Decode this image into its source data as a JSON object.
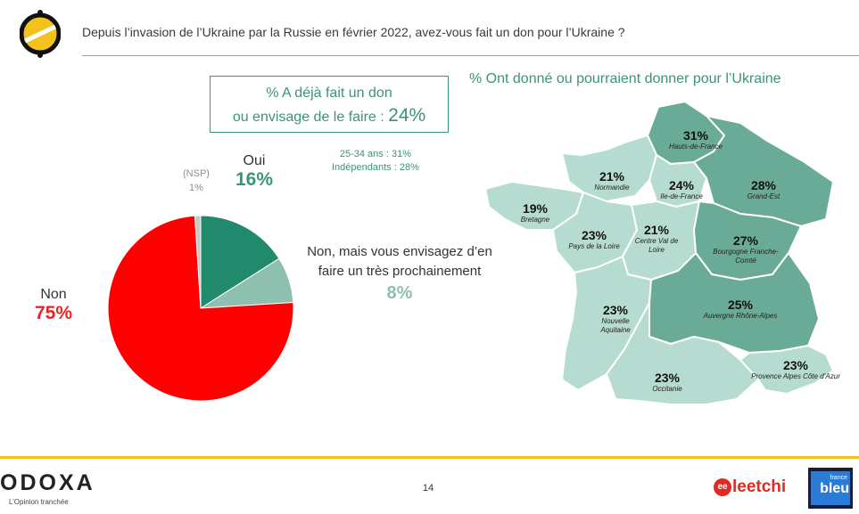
{
  "question": "Depuis l’invasion de l’Ukraine par la Russie en février 2022, avez-vous fait un don pour l’Ukraine ?",
  "summary_box": {
    "line1": "% A déjà fait un don",
    "line2_prefix": "ou envisage de le faire : ",
    "line2_value": "24%"
  },
  "segments": [
    "25-34 ans : 31%",
    "Indépendants : 28%"
  ],
  "map_title": "% Ont donné ou pourraient donner pour l’Ukraine",
  "chart_data": [
    {
      "type": "pie",
      "slices": [
        {
          "label": "Oui",
          "value": 16,
          "display": "16%",
          "color": "#218a6c"
        },
        {
          "label": "Non, mais vous envisagez d’en faire un très prochainement",
          "value": 8,
          "display": "8%",
          "color": "#8fbfaf"
        },
        {
          "label": "Non",
          "value": 75,
          "display": "75%",
          "color": "#ff0000"
        },
        {
          "label": "(NSP)",
          "value": 1,
          "display": "1%",
          "color": "#c8c8c8"
        }
      ]
    },
    {
      "type": "table",
      "regions": [
        {
          "name": "Hauts-de-France",
          "value": "31%",
          "fill": "#6aab97"
        },
        {
          "name": "Normandie",
          "value": "21%",
          "fill": "#b6dbd0"
        },
        {
          "name": "Ile-de-France",
          "value": "24%",
          "fill": "#b6dbd0"
        },
        {
          "name": "Grand-Est",
          "value": "28%",
          "fill": "#6aab97"
        },
        {
          "name": "Bretagne",
          "value": "19%",
          "fill": "#b6dbd0"
        },
        {
          "name": "Pays de la Loire",
          "value": "23%",
          "fill": "#b6dbd0"
        },
        {
          "name": "Centre Val de Loire",
          "value": "21%",
          "fill": "#b6dbd0"
        },
        {
          "name": "Bourgogne Franche-Comté",
          "value": "27%",
          "fill": "#6aab97"
        },
        {
          "name": "Nouvelle Aquitaine",
          "value": "23%",
          "fill": "#b6dbd0"
        },
        {
          "name": "Auvergne Rhône-Alpes",
          "value": "25%",
          "fill": "#6aab97"
        },
        {
          "name": "Occitanie",
          "value": "23%",
          "fill": "#b6dbd0"
        },
        {
          "name": "Provence Alpes Côte d’Azur",
          "value": "23%",
          "fill": "#b6dbd0"
        }
      ]
    }
  ],
  "footer": {
    "brand": "ODOXA",
    "tagline": "L’Opinion tranchée",
    "page": "14",
    "leetchi_mark": "ee",
    "leetchi": "leetchi",
    "francebleu_top": "france",
    "francebleu_bottom": "bleu"
  }
}
